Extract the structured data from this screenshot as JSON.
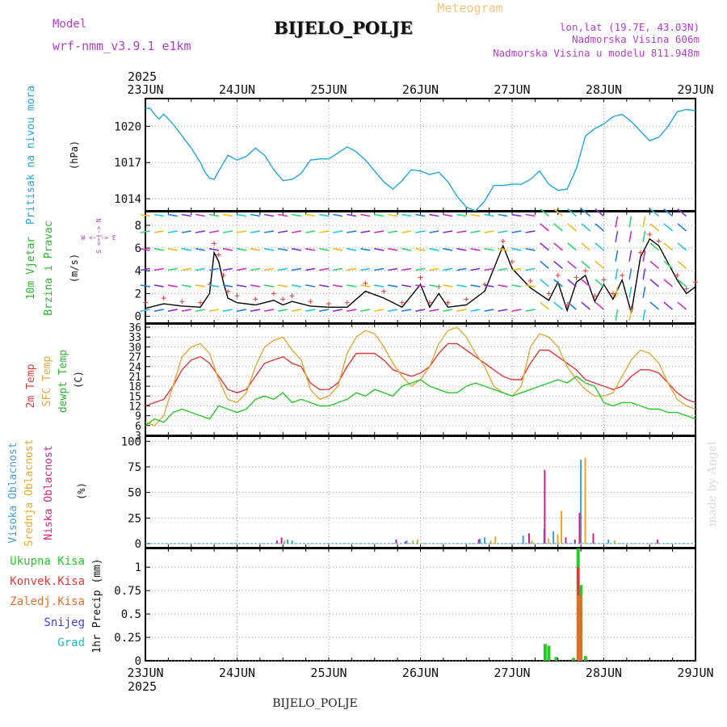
{
  "header": {
    "model_label": "Model",
    "model_name": "wrf-nmm_v3.9.1 e1km",
    "station": "BIJELO_POLJE",
    "meteogram_label": "Meteogram",
    "lonlat": "lon,lat (19.7E, 43.03N)",
    "elevation": "Nadmorska Visina 606m",
    "model_elevation": "Nadmorska Visina u modelu 811.948m",
    "footer_station": "BIJELO_POLJE",
    "watermark": "made by Angel"
  },
  "colors": {
    "pressure": "#1ea7e0",
    "temp2m": "#e03838",
    "sfc_temp": "#e0a838",
    "dewpt": "#28c828",
    "high_cloud": "#3aa0d8",
    "mid_cloud": "#e8a820",
    "low_cloud": "#d0208a",
    "total_precip": "#28c828",
    "conv_precip": "#e03838",
    "frozen": "#e07030",
    "snow": "#4040e0",
    "hail": "#20c0c0",
    "purple": "#b040c8"
  },
  "chart_data": [
    {
      "type": "line",
      "panel": "pressure",
      "title": "",
      "ylabel_lines": [
        "Pritisak na nivou mora"
      ],
      "unit": "(hPa)",
      "x_top_year": "2025",
      "x_ticks": [
        "23JUN",
        "24JUN",
        "25JUN",
        "26JUN",
        "27JUN",
        "28JUN",
        "29JUN"
      ],
      "x_bottom_year": "2025",
      "xlim_days": [
        0,
        6
      ],
      "y_ticks": [
        "1014",
        "1017",
        "1020"
      ],
      "ylim": [
        1013,
        1022.3
      ],
      "grid": true,
      "series": [
        {
          "name": "Pritisak na nivou mora",
          "color_key": "pressure",
          "x": [
            0,
            0.05,
            0.1,
            0.15,
            0.2,
            0.25,
            0.3,
            0.4,
            0.5,
            0.6,
            0.65,
            0.7,
            0.75,
            0.8,
            0.9,
            1.0,
            1.1,
            1.2,
            1.3,
            1.4,
            1.5,
            1.6,
            1.7,
            1.8,
            1.9,
            2.0,
            2.1,
            2.2,
            2.3,
            2.4,
            2.5,
            2.6,
            2.7,
            2.8,
            2.9,
            3.0,
            3.1,
            3.2,
            3.3,
            3.4,
            3.5,
            3.6,
            3.7,
            3.8,
            3.9,
            4.0,
            4.1,
            4.2,
            4.3,
            4.4,
            4.5,
            4.6,
            4.7,
            4.8,
            4.9,
            5.0,
            5.1,
            5.2,
            5.3,
            5.4,
            5.5,
            5.6,
            5.7,
            5.8,
            5.9,
            6.0
          ],
          "y": [
            1021.5,
            1021.5,
            1021.0,
            1020.6,
            1021.0,
            1020.6,
            1020.2,
            1019.2,
            1018.2,
            1017.0,
            1016.2,
            1015.7,
            1015.6,
            1016.3,
            1017.6,
            1017.2,
            1017.5,
            1018.2,
            1017.6,
            1016.4,
            1015.5,
            1015.6,
            1016.1,
            1017.2,
            1017.3,
            1017.3,
            1017.8,
            1018.3,
            1017.9,
            1017.2,
            1016.3,
            1015.4,
            1014.8,
            1015.5,
            1016.4,
            1016.3,
            1016.0,
            1016.2,
            1015.4,
            1014.2,
            1013.3,
            1013.0,
            1013.8,
            1015.1,
            1015.1,
            1015.2,
            1015.2,
            1015.6,
            1016.3,
            1015.2,
            1014.7,
            1014.8,
            1016.5,
            1019.2,
            1019.8,
            1020.2,
            1020.8,
            1021.0,
            1020.4,
            1019.6,
            1018.8,
            1019.1,
            1020.0,
            1021.2,
            1021.4,
            1021.3
          ]
        }
      ]
    },
    {
      "type": "line",
      "panel": "wind",
      "ylabel_lines": [
        "10m Vjetar",
        "Brzina i Pravac"
      ],
      "unit": "(m/s)",
      "compass": "W <-|-> E",
      "compass_vertical": "S <-|-> N",
      "y_ticks": [
        "0",
        "2",
        "4",
        "6",
        "8"
      ],
      "ylim": [
        -0.6,
        9.2
      ],
      "grid": true,
      "series": [
        {
          "name": "10m Vjetar Brzina",
          "color": "#000000",
          "x": [
            0,
            0.2,
            0.4,
            0.6,
            0.7,
            0.75,
            0.8,
            0.85,
            0.9,
            1.0,
            1.2,
            1.4,
            1.5,
            1.6,
            1.8,
            2.0,
            2.2,
            2.4,
            2.6,
            2.8,
            3.0,
            3.1,
            3.2,
            3.3,
            3.5,
            3.7,
            3.9,
            4.0,
            4.2,
            4.4,
            4.5,
            4.6,
            4.7,
            4.8,
            4.9,
            5.0,
            5.1,
            5.2,
            5.3,
            5.4,
            5.5,
            5.6,
            5.8,
            5.9,
            6.0
          ],
          "y": [
            0.7,
            1.1,
            0.9,
            0.8,
            2.0,
            5.6,
            4.8,
            3.0,
            1.6,
            1.2,
            1.0,
            1.4,
            1.0,
            1.3,
            0.9,
            0.8,
            0.8,
            2.2,
            1.6,
            0.8,
            2.8,
            0.8,
            2.0,
            0.8,
            1.0,
            2.2,
            6.2,
            4.2,
            2.5,
            1.4,
            3.0,
            0.5,
            3.0,
            3.6,
            1.3,
            2.8,
            1.5,
            3.2,
            0.3,
            5.2,
            6.8,
            6.2,
            3.2,
            2.0,
            2.6
          ]
        },
        {
          "name": "10m Vjetar Udari",
          "color": "#e03838",
          "x": [
            0,
            0.2,
            0.4,
            0.6,
            0.7,
            0.75,
            0.8,
            0.85,
            0.9,
            1.0,
            1.2,
            1.4,
            1.5,
            1.6,
            1.8,
            2.0,
            2.2,
            2.4,
            2.6,
            2.8,
            3.0,
            3.1,
            3.2,
            3.3,
            3.5,
            3.7,
            3.9,
            4.0,
            4.2,
            4.4,
            4.5,
            4.6,
            4.7,
            4.8,
            4.9,
            5.0,
            5.1,
            5.2,
            5.3,
            5.4,
            5.5,
            5.6,
            5.8,
            5.9,
            6.0
          ],
          "y": [
            1.2,
            1.6,
            1.3,
            1.2,
            2.8,
            6.4,
            5.4,
            3.6,
            2.2,
            1.8,
            1.5,
            2.0,
            1.5,
            1.8,
            1.3,
            1.1,
            1.2,
            2.9,
            2.2,
            1.2,
            3.4,
            1.2,
            2.6,
            1.2,
            1.5,
            2.8,
            6.6,
            4.8,
            3.1,
            2.0,
            3.6,
            1.0,
            3.4,
            4.0,
            1.8,
            3.2,
            2.0,
            3.6,
            0.7,
            5.6,
            7.2,
            6.6,
            3.6,
            2.4,
            3.0
          ]
        }
      ]
    },
    {
      "type": "line",
      "panel": "temperature",
      "ylabel_lines": [
        "2m Temp",
        "SFC Temp",
        "dewpt Temp"
      ],
      "unit": "(C)",
      "y_ticks": [
        "3",
        "6",
        "9",
        "12",
        "15",
        "18",
        "21",
        "24",
        "27",
        "30",
        "33",
        "36"
      ],
      "ylim": [
        3,
        37
      ],
      "grid": true,
      "series": [
        {
          "name": "2m Temp",
          "color_key": "temp2m",
          "x": [
            0,
            0.1,
            0.2,
            0.3,
            0.4,
            0.5,
            0.6,
            0.7,
            0.8,
            0.9,
            1.0,
            1.1,
            1.2,
            1.3,
            1.4,
            1.5,
            1.6,
            1.7,
            1.8,
            1.9,
            2.0,
            2.1,
            2.2,
            2.3,
            2.4,
            2.5,
            2.6,
            2.7,
            2.8,
            2.9,
            3.0,
            3.1,
            3.2,
            3.3,
            3.4,
            3.5,
            3.6,
            3.7,
            3.8,
            3.9,
            4.0,
            4.1,
            4.2,
            4.3,
            4.4,
            4.5,
            4.6,
            4.7,
            4.8,
            4.9,
            5.0,
            5.1,
            5.2,
            5.3,
            5.4,
            5.5,
            5.6,
            5.7,
            5.8,
            5.9,
            6.0
          ],
          "y": [
            12,
            13,
            14,
            18,
            23,
            26,
            27,
            25,
            21,
            17,
            16,
            17,
            21,
            25,
            26,
            27,
            25,
            24,
            19,
            17,
            17,
            19,
            24,
            28,
            28,
            28,
            26,
            23,
            22,
            21,
            22,
            24,
            28,
            31,
            31,
            29,
            27,
            25,
            23,
            21,
            20,
            20,
            25,
            29,
            29,
            27,
            25,
            23,
            20,
            19,
            18,
            17,
            18,
            21,
            23,
            23,
            22,
            19,
            16,
            14,
            13
          ]
        },
        {
          "name": "SFC Temp",
          "color_key": "sfc_temp",
          "x": [
            0,
            0.1,
            0.2,
            0.3,
            0.4,
            0.5,
            0.6,
            0.7,
            0.8,
            0.9,
            1.0,
            1.1,
            1.2,
            1.3,
            1.4,
            1.5,
            1.6,
            1.7,
            1.8,
            1.9,
            2.0,
            2.1,
            2.2,
            2.3,
            2.4,
            2.5,
            2.6,
            2.7,
            2.8,
            2.9,
            3.0,
            3.1,
            3.2,
            3.3,
            3.4,
            3.5,
            3.6,
            3.7,
            3.8,
            3.9,
            4.0,
            4.1,
            4.2,
            4.3,
            4.4,
            4.5,
            4.6,
            4.7,
            4.8,
            4.9,
            5.0,
            5.1,
            5.2,
            5.3,
            5.4,
            5.5,
            5.6,
            5.7,
            5.8,
            5.9,
            6.0
          ],
          "y": [
            7,
            6,
            9,
            18,
            27,
            30,
            31,
            28,
            20,
            14,
            13,
            16,
            24,
            30,
            32,
            33,
            29,
            26,
            17,
            14,
            15,
            18,
            28,
            33,
            35,
            34,
            30,
            25,
            21,
            18,
            20,
            24,
            31,
            35,
            36,
            33,
            28,
            24,
            18,
            16,
            15,
            18,
            30,
            34,
            33,
            30,
            24,
            20,
            17,
            15,
            15,
            16,
            21,
            26,
            29,
            28,
            25,
            19,
            14,
            12,
            11
          ]
        },
        {
          "name": "dewpt Temp",
          "color_key": "dewpt",
          "x": [
            0,
            0.1,
            0.2,
            0.3,
            0.4,
            0.5,
            0.6,
            0.7,
            0.8,
            0.9,
            1.0,
            1.1,
            1.2,
            1.3,
            1.4,
            1.5,
            1.6,
            1.7,
            1.8,
            1.9,
            2.0,
            2.1,
            2.2,
            2.3,
            2.4,
            2.5,
            2.6,
            2.7,
            2.8,
            2.9,
            3.0,
            3.1,
            3.2,
            3.3,
            3.4,
            3.5,
            3.6,
            3.7,
            3.8,
            3.9,
            4.0,
            4.1,
            4.2,
            4.3,
            4.4,
            4.5,
            4.6,
            4.7,
            4.8,
            4.9,
            5.0,
            5.1,
            5.2,
            5.3,
            5.4,
            5.5,
            5.6,
            5.7,
            5.8,
            5.9,
            6.0
          ],
          "y": [
            6,
            8,
            7,
            10,
            11,
            10,
            9,
            8,
            12,
            11,
            10,
            11,
            14,
            15,
            14,
            16,
            13,
            14,
            13,
            12,
            12,
            13,
            14,
            16,
            15,
            17,
            16,
            15,
            18,
            19,
            20,
            18,
            17,
            16,
            16,
            18,
            19,
            18,
            17,
            16,
            15,
            16,
            17,
            18,
            19,
            20,
            19,
            21,
            19,
            18,
            13,
            12,
            13,
            13,
            12,
            11,
            11,
            10,
            10,
            9,
            8
          ]
        }
      ]
    },
    {
      "type": "bar",
      "panel": "clouds",
      "ylabel_lines": [
        "Visoka Oblacnost",
        "Srednja Oblacnost",
        "Niska Oblacnost"
      ],
      "unit": "(%)",
      "y_ticks": [
        "0",
        "25",
        "50",
        "75",
        "100"
      ],
      "ylim": [
        -4,
        105
      ],
      "grid": true,
      "series": [
        {
          "name": "Visoka Oblacnost",
          "color_key": "high_cloud",
          "x": [
            1.55,
            1.6,
            2.85,
            3.65,
            3.7,
            4.12,
            4.35,
            4.45,
            4.75,
            5.05
          ],
          "y": [
            4,
            3,
            3,
            5,
            6,
            8,
            14,
            12,
            82,
            4
          ]
        },
        {
          "name": "Srednja Oblacnost",
          "color_key": "mid_cloud",
          "x": [
            1.5,
            2.9,
            2.95,
            3.75,
            3.8,
            4.2,
            4.38,
            4.48,
            4.52,
            4.72,
            4.78,
            5.1
          ],
          "y": [
            3,
            3,
            4,
            3,
            7,
            3,
            5,
            9,
            32,
            8,
            84,
            3
          ]
        },
        {
          "name": "Niska Oblacnost",
          "color_key": "low_cloud",
          "x": [
            1.4,
            1.45,
            2.7,
            2.8,
            3.6,
            4.15,
            4.32,
            4.55,
            4.65,
            4.7,
            4.85,
            5.55
          ],
          "y": [
            3,
            6,
            4,
            2,
            4,
            10,
            72,
            6,
            4,
            30,
            10,
            4
          ]
        }
      ]
    },
    {
      "type": "bar",
      "panel": "precip",
      "ylabel_lines": [
        "Ukupna Kisa",
        "Konvek.Kisa",
        "Zaledj.Kisa",
        "Snijeg",
        "Grad"
      ],
      "unit": "1hr Precip (mm)",
      "y_ticks": [
        "0",
        "0.25",
        "0.5",
        "0.75",
        "1"
      ],
      "ylim": [
        0,
        1.2
      ],
      "grid": true,
      "series": [
        {
          "name": "Ukupna Kisa",
          "color_key": "total_precip",
          "x": [
            4.36,
            4.4,
            4.48,
            4.67,
            4.72,
            4.75,
            4.8
          ],
          "y": [
            0.18,
            0.16,
            0.04,
            0.03,
            1.2,
            0.81,
            0.05
          ]
        },
        {
          "name": "Konvek.Kisa",
          "color_key": "conv_precip",
          "x": [
            4.72,
            4.75
          ],
          "y": [
            1.0,
            0.6
          ]
        },
        {
          "name": "Zaledj.Kisa",
          "color_key": "frozen",
          "x": [
            4.72,
            4.75
          ],
          "y": [
            0.7,
            0.7
          ]
        },
        {
          "name": "Snijeg",
          "color_key": "snow",
          "x": [],
          "y": []
        },
        {
          "name": "Grad",
          "color_key": "hail",
          "x": [],
          "y": []
        }
      ]
    }
  ]
}
